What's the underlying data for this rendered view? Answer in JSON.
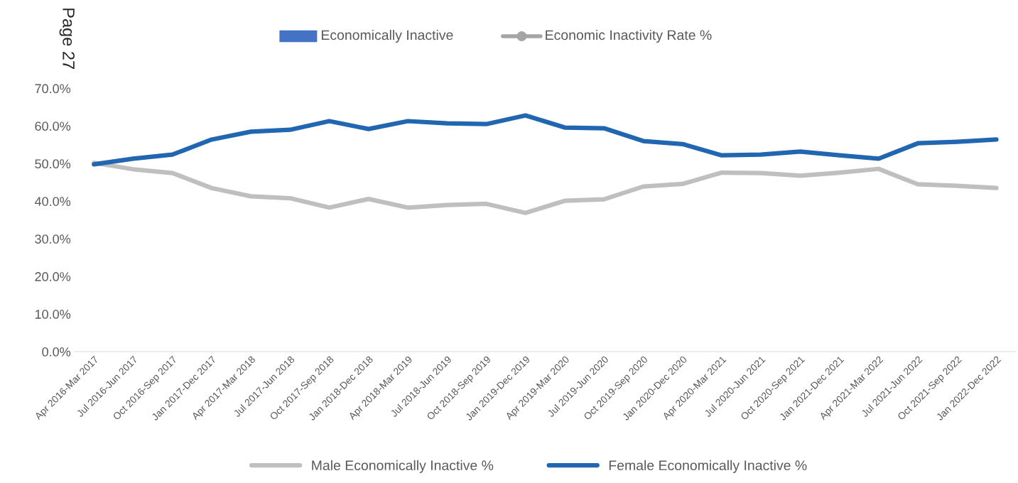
{
  "chart_data": {
    "type": "line",
    "categories": [
      "Apr 2016-Mar 2017",
      "Jul 2016-Jun 2017",
      "Oct 2016-Sep 2017",
      "Jan 2017-Dec 2017",
      "Apr 2017-Mar 2018",
      "Jul 2017-Jun 2018",
      "Oct 2017-Sep 2018",
      "Jan 2018-Dec 2018",
      "Apr 2018-Mar 2019",
      "Jul 2018-Jun 2019",
      "Oct 2018-Sep 2019",
      "Jan 2019-Dec 2019",
      "Apr 2019-Mar 2020",
      "Jul 2019-Jun 2020",
      "Oct 2019-Sep 2020",
      "Jan 2020-Dec 2020",
      "Apr 2020-Mar 2021",
      "Jul 2020-Jun 2021",
      "Oct 2020-Sep 2021",
      "Jan 2021-Dec 2021",
      "Apr 2021-Mar 2022",
      "Jul 2021-Jun 2022",
      "Oct 2021-Sep 2022",
      "Jan 2022-Dec 2022"
    ],
    "series": [
      {
        "name": "Male Economically Inactive %",
        "color": "#bfbfbf",
        "values": [
          50.2,
          48.5,
          47.5,
          43.5,
          41.3,
          40.8,
          38.3,
          40.6,
          38.3,
          39.0,
          39.3,
          36.9,
          40.1,
          40.5,
          43.9,
          44.6,
          47.6,
          47.5,
          46.8,
          47.6,
          48.6,
          44.5,
          44.1,
          43.5
        ]
      },
      {
        "name": "Female Economically Inactive %",
        "color": "#2166b0",
        "values": [
          49.8,
          51.3,
          52.4,
          56.4,
          58.5,
          59.0,
          61.3,
          59.2,
          61.3,
          60.7,
          60.5,
          62.8,
          59.6,
          59.4,
          56.0,
          55.2,
          52.2,
          52.4,
          53.2,
          52.2,
          51.3,
          55.4,
          55.8,
          56.4
        ]
      }
    ],
    "ylim": [
      0,
      70
    ],
    "yticks": [
      {
        "value": 0,
        "label": "0.0%"
      },
      {
        "value": 10,
        "label": "10.0%"
      },
      {
        "value": 20,
        "label": "20.0%"
      },
      {
        "value": 30,
        "label": "30.0%"
      },
      {
        "value": 40,
        "label": "40.0%"
      },
      {
        "value": 50,
        "label": "50.0%"
      },
      {
        "value": 60,
        "label": "60.0%"
      },
      {
        "value": 70,
        "label": "70.0%"
      }
    ],
    "grid": false,
    "legend": "bottom",
    "marker": "none",
    "line_style": "solid",
    "annotations": [
      "Page 27",
      "Economically Inactive",
      "Economic Inactivity Rate %"
    ]
  }
}
